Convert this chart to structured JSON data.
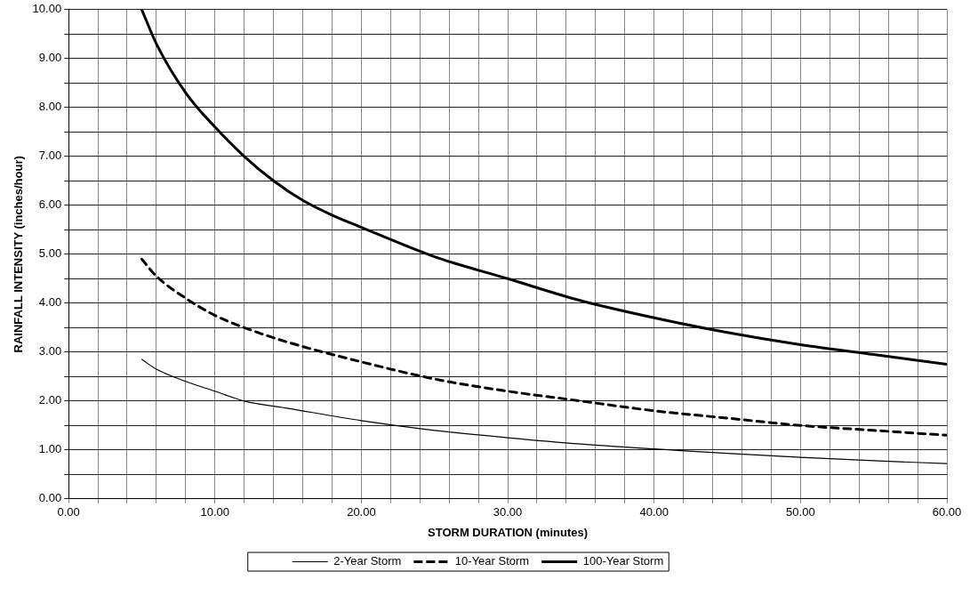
{
  "chart_data": {
    "type": "line",
    "xlabel": "STORM DURATION (minutes)",
    "ylabel": "RAINFALL INTENSITY (inches/hour)",
    "xlim": [
      0,
      60
    ],
    "ylim": [
      0,
      10
    ],
    "xticks": [
      {
        "value": 0,
        "label": "0.00"
      },
      {
        "value": 2,
        "label": null
      },
      {
        "value": 4,
        "label": null
      },
      {
        "value": 6,
        "label": null
      },
      {
        "value": 8,
        "label": null
      },
      {
        "value": 10,
        "label": "10.00"
      },
      {
        "value": 12,
        "label": null
      },
      {
        "value": 14,
        "label": null
      },
      {
        "value": 16,
        "label": null
      },
      {
        "value": 18,
        "label": null
      },
      {
        "value": 20,
        "label": "20.00"
      },
      {
        "value": 22,
        "label": null
      },
      {
        "value": 24,
        "label": null
      },
      {
        "value": 26,
        "label": null
      },
      {
        "value": 28,
        "label": null
      },
      {
        "value": 30,
        "label": "30.00"
      },
      {
        "value": 32,
        "label": null
      },
      {
        "value": 34,
        "label": null
      },
      {
        "value": 36,
        "label": null
      },
      {
        "value": 38,
        "label": null
      },
      {
        "value": 40,
        "label": "40.00"
      },
      {
        "value": 42,
        "label": null
      },
      {
        "value": 44,
        "label": null
      },
      {
        "value": 46,
        "label": null
      },
      {
        "value": 48,
        "label": null
      },
      {
        "value": 50,
        "label": "50.00"
      },
      {
        "value": 52,
        "label": null
      },
      {
        "value": 54,
        "label": null
      },
      {
        "value": 56,
        "label": null
      },
      {
        "value": 58,
        "label": null
      },
      {
        "value": 60,
        "label": "60.00"
      }
    ],
    "yticks": [
      {
        "value": 0,
        "label": "0.00"
      },
      {
        "value": 0.5,
        "label": null
      },
      {
        "value": 1,
        "label": "1.00"
      },
      {
        "value": 1.5,
        "label": null
      },
      {
        "value": 2,
        "label": "2.00"
      },
      {
        "value": 2.5,
        "label": null
      },
      {
        "value": 3,
        "label": "3.00"
      },
      {
        "value": 3.5,
        "label": null
      },
      {
        "value": 4,
        "label": "4.00"
      },
      {
        "value": 4.5,
        "label": null
      },
      {
        "value": 5,
        "label": "5.00"
      },
      {
        "value": 5.5,
        "label": null
      },
      {
        "value": 6,
        "label": "6.00"
      },
      {
        "value": 6.5,
        "label": null
      },
      {
        "value": 7,
        "label": "7.00"
      },
      {
        "value": 7.5,
        "label": null
      },
      {
        "value": 8,
        "label": "8.00"
      },
      {
        "value": 8.5,
        "label": null
      },
      {
        "value": 9,
        "label": "9.00"
      },
      {
        "value": 9.5,
        "label": null
      },
      {
        "value": 10,
        "label": "10.00"
      }
    ],
    "grid": true,
    "legend": "bottom",
    "marker": "none",
    "series": [
      {
        "name": "2-Year Storm",
        "color": "#000000",
        "line_style": "solid",
        "x": [
          5,
          6,
          8,
          10,
          12,
          15,
          20,
          25,
          30,
          35,
          40,
          45,
          50,
          55,
          60
        ],
        "values": [
          2.85,
          2.65,
          2.4,
          2.2,
          2.0,
          1.85,
          1.6,
          1.4,
          1.25,
          1.12,
          1.02,
          0.93,
          0.85,
          0.78,
          0.72
        ]
      },
      {
        "name": "10-Year Storm",
        "color": "#000000",
        "line_style": "dashed",
        "x": [
          5,
          6,
          8,
          10,
          12,
          15,
          20,
          25,
          30,
          35,
          40,
          45,
          50,
          55,
          60
        ],
        "values": [
          4.9,
          4.55,
          4.1,
          3.75,
          3.5,
          3.2,
          2.8,
          2.45,
          2.2,
          2.0,
          1.8,
          1.65,
          1.5,
          1.4,
          1.3
        ]
      },
      {
        "name": "100-Year Storm",
        "color": "#000000",
        "line_style": "solid",
        "x": [
          5,
          6,
          8,
          10,
          12,
          14,
          16,
          18,
          20,
          25,
          30,
          35,
          40,
          45,
          50,
          55,
          60
        ],
        "values": [
          10.0,
          9.3,
          8.3,
          7.6,
          7.0,
          6.5,
          6.1,
          5.8,
          5.55,
          4.95,
          4.5,
          4.05,
          3.7,
          3.4,
          3.15,
          2.95,
          2.75
        ]
      }
    ]
  }
}
